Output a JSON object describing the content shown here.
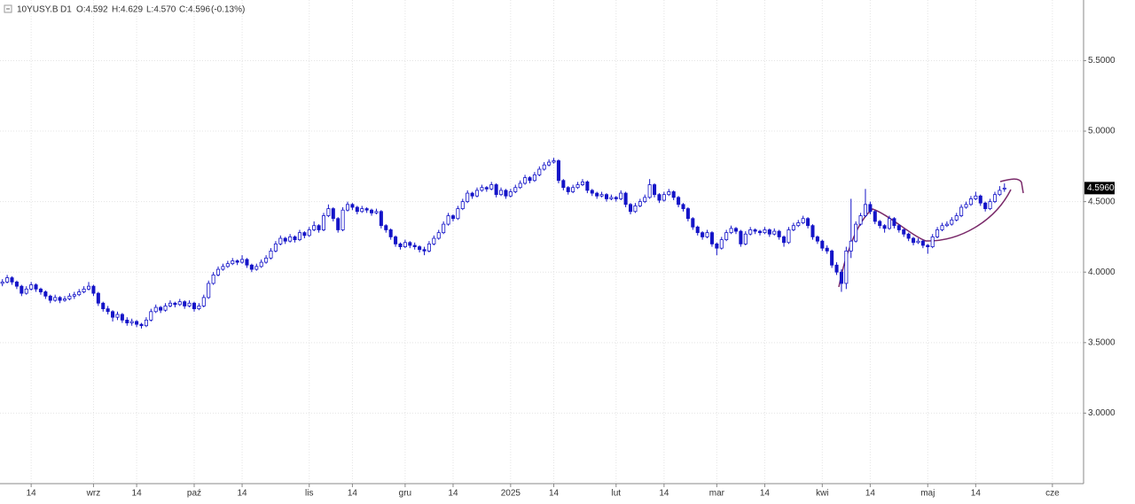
{
  "header": {
    "symbol": "10YUSY.B",
    "timeframe": "D1",
    "open": "O:4.592",
    "high": "H:4.629",
    "low": "L:4.570",
    "close": "C:4.596",
    "change": "(-0.13%)"
  },
  "chart_data": {
    "type": "candlestick",
    "up_color": "#ffffff",
    "down_color": "#1414c8",
    "outline_color": "#1414c8",
    "grid": true,
    "ylim": [
      2.5,
      5.93
    ],
    "yticks": [
      {
        "value": 3.0,
        "label": "3.0000"
      },
      {
        "value": 3.5,
        "label": "3.5000"
      },
      {
        "value": 4.0,
        "label": "4.0000"
      },
      {
        "value": 4.5,
        "label": "4.5000"
      },
      {
        "value": 5.0,
        "label": "5.0000"
      },
      {
        "value": 5.5,
        "label": "5.5000"
      }
    ],
    "xlim": [
      -0.5,
      225.5
    ],
    "xticks": [
      {
        "value": 6,
        "label": "14"
      },
      {
        "value": 19,
        "label": "wrz"
      },
      {
        "value": 28,
        "label": "14"
      },
      {
        "value": 40,
        "label": "paź"
      },
      {
        "value": 50,
        "label": "14"
      },
      {
        "value": 64,
        "label": "lis"
      },
      {
        "value": 73,
        "label": "14"
      },
      {
        "value": 84,
        "label": "gru"
      },
      {
        "value": 94,
        "label": "14"
      },
      {
        "value": 106,
        "label": "2025"
      },
      {
        "value": 115,
        "label": "14"
      },
      {
        "value": 128,
        "label": "lut"
      },
      {
        "value": 138,
        "label": "14"
      },
      {
        "value": 149,
        "label": "mar"
      },
      {
        "value": 159,
        "label": "14"
      },
      {
        "value": 171,
        "label": "kwi"
      },
      {
        "value": 181,
        "label": "14"
      },
      {
        "value": 193,
        "label": "maj"
      },
      {
        "value": 203,
        "label": "14"
      },
      {
        "value": 219,
        "label": "cze"
      }
    ],
    "last_price": {
      "value": 4.596,
      "label": "4.5960"
    },
    "ohlc": [
      [
        3.92,
        3.95,
        3.9,
        3.93
      ],
      [
        3.93,
        3.98,
        3.92,
        3.96
      ],
      [
        3.96,
        3.97,
        3.91,
        3.93
      ],
      [
        3.93,
        3.94,
        3.88,
        3.9
      ],
      [
        3.9,
        3.91,
        3.83,
        3.85
      ],
      [
        3.85,
        3.9,
        3.84,
        3.88
      ],
      [
        3.88,
        3.93,
        3.87,
        3.91
      ],
      [
        3.91,
        3.92,
        3.86,
        3.88
      ],
      [
        3.88,
        3.89,
        3.84,
        3.86
      ],
      [
        3.86,
        3.87,
        3.81,
        3.83
      ],
      [
        3.83,
        3.84,
        3.78,
        3.8
      ],
      [
        3.8,
        3.84,
        3.79,
        3.82
      ],
      [
        3.82,
        3.83,
        3.78,
        3.8
      ],
      [
        3.8,
        3.83,
        3.79,
        3.81
      ],
      [
        3.81,
        3.85,
        3.8,
        3.83
      ],
      [
        3.83,
        3.86,
        3.81,
        3.84
      ],
      [
        3.84,
        3.88,
        3.83,
        3.86
      ],
      [
        3.86,
        3.9,
        3.85,
        3.88
      ],
      [
        3.88,
        3.93,
        3.87,
        3.9
      ],
      [
        3.9,
        3.91,
        3.83,
        3.85
      ],
      [
        3.85,
        3.86,
        3.76,
        3.78
      ],
      [
        3.78,
        3.79,
        3.72,
        3.74
      ],
      [
        3.74,
        3.76,
        3.7,
        3.72
      ],
      [
        3.72,
        3.73,
        3.65,
        3.68
      ],
      [
        3.68,
        3.72,
        3.66,
        3.7
      ],
      [
        3.7,
        3.71,
        3.64,
        3.66
      ],
      [
        3.66,
        3.68,
        3.62,
        3.64
      ],
      [
        3.64,
        3.67,
        3.62,
        3.65
      ],
      [
        3.65,
        3.66,
        3.61,
        3.63
      ],
      [
        3.63,
        3.64,
        3.6,
        3.62
      ],
      [
        3.62,
        3.68,
        3.61,
        3.66
      ],
      [
        3.66,
        3.74,
        3.65,
        3.72
      ],
      [
        3.72,
        3.77,
        3.71,
        3.75
      ],
      [
        3.75,
        3.76,
        3.71,
        3.73
      ],
      [
        3.73,
        3.78,
        3.72,
        3.76
      ],
      [
        3.76,
        3.8,
        3.75,
        3.78
      ],
      [
        3.78,
        3.79,
        3.75,
        3.77
      ],
      [
        3.77,
        3.81,
        3.76,
        3.79
      ],
      [
        3.79,
        3.8,
        3.74,
        3.76
      ],
      [
        3.76,
        3.8,
        3.75,
        3.78
      ],
      [
        3.78,
        3.79,
        3.72,
        3.74
      ],
      [
        3.74,
        3.78,
        3.73,
        3.76
      ],
      [
        3.76,
        3.84,
        3.75,
        3.82
      ],
      [
        3.82,
        3.94,
        3.81,
        3.92
      ],
      [
        3.92,
        4.0,
        3.91,
        3.98
      ],
      [
        3.98,
        4.04,
        3.97,
        4.02
      ],
      [
        4.02,
        4.06,
        4.01,
        4.04
      ],
      [
        4.04,
        4.08,
        4.03,
        4.06
      ],
      [
        4.06,
        4.1,
        4.05,
        4.08
      ],
      [
        4.08,
        4.09,
        4.05,
        4.07
      ],
      [
        4.07,
        4.12,
        4.06,
        4.09
      ],
      [
        4.09,
        4.1,
        4.03,
        4.05
      ],
      [
        4.05,
        4.06,
        4.0,
        4.02
      ],
      [
        4.02,
        4.06,
        4.01,
        4.04
      ],
      [
        4.04,
        4.09,
        4.03,
        4.07
      ],
      [
        4.07,
        4.12,
        4.06,
        4.1
      ],
      [
        4.1,
        4.17,
        4.09,
        4.15
      ],
      [
        4.15,
        4.22,
        4.14,
        4.2
      ],
      [
        4.2,
        4.26,
        4.19,
        4.24
      ],
      [
        4.24,
        4.25,
        4.2,
        4.22
      ],
      [
        4.22,
        4.27,
        4.21,
        4.25
      ],
      [
        4.25,
        4.26,
        4.21,
        4.23
      ],
      [
        4.23,
        4.3,
        4.22,
        4.28
      ],
      [
        4.28,
        4.29,
        4.24,
        4.26
      ],
      [
        4.26,
        4.32,
        4.25,
        4.3
      ],
      [
        4.3,
        4.36,
        4.29,
        4.33
      ],
      [
        4.33,
        4.34,
        4.28,
        4.3
      ],
      [
        4.3,
        4.42,
        4.29,
        4.4
      ],
      [
        4.4,
        4.48,
        4.39,
        4.45
      ],
      [
        4.45,
        4.46,
        4.36,
        4.38
      ],
      [
        4.38,
        4.39,
        4.28,
        4.3
      ],
      [
        4.3,
        4.46,
        4.29,
        4.44
      ],
      [
        4.44,
        4.5,
        4.43,
        4.48
      ],
      [
        4.48,
        4.49,
        4.44,
        4.46
      ],
      [
        4.46,
        4.47,
        4.41,
        4.43
      ],
      [
        4.43,
        4.47,
        4.42,
        4.45
      ],
      [
        4.45,
        4.46,
        4.42,
        4.44
      ],
      [
        4.44,
        4.45,
        4.4,
        4.42
      ],
      [
        4.42,
        4.45,
        4.41,
        4.43
      ],
      [
        4.43,
        4.44,
        4.31,
        4.33
      ],
      [
        4.33,
        4.34,
        4.28,
        4.3
      ],
      [
        4.3,
        4.31,
        4.23,
        4.25
      ],
      [
        4.25,
        4.26,
        4.18,
        4.2
      ],
      [
        4.2,
        4.21,
        4.16,
        4.18
      ],
      [
        4.18,
        4.23,
        4.17,
        4.21
      ],
      [
        4.21,
        4.22,
        4.17,
        4.19
      ],
      [
        4.19,
        4.21,
        4.16,
        4.18
      ],
      [
        4.18,
        4.19,
        4.14,
        4.16
      ],
      [
        4.16,
        4.18,
        4.12,
        4.15
      ],
      [
        4.15,
        4.22,
        4.14,
        4.2
      ],
      [
        4.2,
        4.26,
        4.19,
        4.24
      ],
      [
        4.24,
        4.3,
        4.23,
        4.28
      ],
      [
        4.28,
        4.36,
        4.27,
        4.34
      ],
      [
        4.34,
        4.42,
        4.33,
        4.4
      ],
      [
        4.4,
        4.41,
        4.36,
        4.38
      ],
      [
        4.38,
        4.47,
        4.37,
        4.45
      ],
      [
        4.45,
        4.52,
        4.44,
        4.5
      ],
      [
        4.5,
        4.58,
        4.49,
        4.56
      ],
      [
        4.56,
        4.57,
        4.52,
        4.54
      ],
      [
        4.54,
        4.6,
        4.53,
        4.58
      ],
      [
        4.58,
        4.62,
        4.57,
        4.6
      ],
      [
        4.6,
        4.61,
        4.57,
        4.59
      ],
      [
        4.59,
        4.64,
        4.58,
        4.62
      ],
      [
        4.62,
        4.63,
        4.53,
        4.55
      ],
      [
        4.55,
        4.6,
        4.54,
        4.58
      ],
      [
        4.58,
        4.59,
        4.52,
        4.54
      ],
      [
        4.54,
        4.59,
        4.53,
        4.57
      ],
      [
        4.57,
        4.62,
        4.56,
        4.6
      ],
      [
        4.6,
        4.65,
        4.59,
        4.63
      ],
      [
        4.63,
        4.69,
        4.62,
        4.67
      ],
      [
        4.67,
        4.68,
        4.63,
        4.65
      ],
      [
        4.65,
        4.71,
        4.64,
        4.69
      ],
      [
        4.69,
        4.75,
        4.68,
        4.73
      ],
      [
        4.73,
        4.78,
        4.72,
        4.76
      ],
      [
        4.76,
        4.8,
        4.75,
        4.78
      ],
      [
        4.78,
        4.81,
        4.77,
        4.79
      ],
      [
        4.79,
        4.8,
        4.63,
        4.65
      ],
      [
        4.65,
        4.66,
        4.58,
        4.6
      ],
      [
        4.6,
        4.61,
        4.55,
        4.57
      ],
      [
        4.57,
        4.62,
        4.56,
        4.6
      ],
      [
        4.6,
        4.64,
        4.59,
        4.62
      ],
      [
        4.62,
        4.66,
        4.61,
        4.64
      ],
      [
        4.64,
        4.65,
        4.56,
        4.58
      ],
      [
        4.58,
        4.59,
        4.54,
        4.56
      ],
      [
        4.56,
        4.57,
        4.52,
        4.54
      ],
      [
        4.54,
        4.57,
        4.53,
        4.55
      ],
      [
        4.55,
        4.56,
        4.5,
        4.52
      ],
      [
        4.52,
        4.55,
        4.51,
        4.53
      ],
      [
        4.53,
        4.54,
        4.5,
        4.52
      ],
      [
        4.52,
        4.58,
        4.51,
        4.56
      ],
      [
        4.56,
        4.57,
        4.46,
        4.48
      ],
      [
        4.48,
        4.49,
        4.41,
        4.43
      ],
      [
        4.43,
        4.49,
        4.42,
        4.47
      ],
      [
        4.47,
        4.52,
        4.46,
        4.5
      ],
      [
        4.5,
        4.55,
        4.49,
        4.53
      ],
      [
        4.53,
        4.66,
        4.52,
        4.62
      ],
      [
        4.62,
        4.63,
        4.53,
        4.55
      ],
      [
        4.55,
        4.56,
        4.49,
        4.51
      ],
      [
        4.51,
        4.57,
        4.5,
        4.55
      ],
      [
        4.55,
        4.59,
        4.54,
        4.57
      ],
      [
        4.57,
        4.58,
        4.51,
        4.53
      ],
      [
        4.53,
        4.54,
        4.46,
        4.48
      ],
      [
        4.48,
        4.49,
        4.43,
        4.45
      ],
      [
        4.45,
        4.46,
        4.36,
        4.38
      ],
      [
        4.38,
        4.39,
        4.3,
        4.32
      ],
      [
        4.32,
        4.33,
        4.26,
        4.28
      ],
      [
        4.28,
        4.29,
        4.23,
        4.25
      ],
      [
        4.25,
        4.3,
        4.24,
        4.28
      ],
      [
        4.28,
        4.29,
        4.18,
        4.2
      ],
      [
        4.2,
        4.21,
        4.12,
        4.17
      ],
      [
        4.17,
        4.25,
        4.16,
        4.23
      ],
      [
        4.23,
        4.3,
        4.22,
        4.28
      ],
      [
        4.28,
        4.33,
        4.27,
        4.31
      ],
      [
        4.31,
        4.32,
        4.27,
        4.29
      ],
      [
        4.29,
        4.3,
        4.18,
        4.2
      ],
      [
        4.2,
        4.29,
        4.19,
        4.27
      ],
      [
        4.27,
        4.32,
        4.26,
        4.3
      ],
      [
        4.3,
        4.31,
        4.27,
        4.29
      ],
      [
        4.29,
        4.3,
        4.26,
        4.28
      ],
      [
        4.28,
        4.32,
        4.27,
        4.3
      ],
      [
        4.3,
        4.31,
        4.25,
        4.27
      ],
      [
        4.27,
        4.31,
        4.26,
        4.29
      ],
      [
        4.29,
        4.3,
        4.23,
        4.25
      ],
      [
        4.25,
        4.26,
        4.18,
        4.21
      ],
      [
        4.21,
        4.32,
        4.2,
        4.3
      ],
      [
        4.3,
        4.35,
        4.29,
        4.33
      ],
      [
        4.33,
        4.37,
        4.32,
        4.35
      ],
      [
        4.35,
        4.4,
        4.34,
        4.38
      ],
      [
        4.38,
        4.39,
        4.31,
        4.33
      ],
      [
        4.33,
        4.34,
        4.23,
        4.25
      ],
      [
        4.25,
        4.26,
        4.2,
        4.22
      ],
      [
        4.22,
        4.23,
        4.15,
        4.17
      ],
      [
        4.17,
        4.19,
        4.13,
        4.15
      ],
      [
        4.15,
        4.16,
        4.03,
        4.05
      ],
      [
        4.05,
        4.07,
        3.98,
        4.0
      ],
      [
        4.0,
        4.02,
        3.86,
        3.92
      ],
      [
        3.92,
        4.18,
        3.88,
        4.15
      ],
      [
        4.15,
        4.52,
        4.1,
        4.22
      ],
      [
        4.22,
        4.36,
        4.21,
        4.34
      ],
      [
        4.34,
        4.42,
        4.33,
        4.4
      ],
      [
        4.4,
        4.59,
        4.39,
        4.48
      ],
      [
        4.48,
        4.5,
        4.41,
        4.43
      ],
      [
        4.43,
        4.44,
        4.34,
        4.36
      ],
      [
        4.36,
        4.37,
        4.31,
        4.33
      ],
      [
        4.33,
        4.34,
        4.28,
        4.31
      ],
      [
        4.31,
        4.4,
        4.3,
        4.38
      ],
      [
        4.38,
        4.39,
        4.31,
        4.33
      ],
      [
        4.33,
        4.34,
        4.28,
        4.3
      ],
      [
        4.3,
        4.31,
        4.25,
        4.27
      ],
      [
        4.27,
        4.28,
        4.22,
        4.24
      ],
      [
        4.24,
        4.25,
        4.19,
        4.21
      ],
      [
        4.21,
        4.24,
        4.2,
        4.22
      ],
      [
        4.22,
        4.23,
        4.17,
        4.19
      ],
      [
        4.19,
        4.2,
        4.13,
        4.18
      ],
      [
        4.18,
        4.27,
        4.17,
        4.25
      ],
      [
        4.25,
        4.32,
        4.24,
        4.3
      ],
      [
        4.3,
        4.35,
        4.29,
        4.33
      ],
      [
        4.33,
        4.36,
        4.32,
        4.34
      ],
      [
        4.34,
        4.39,
        4.33,
        4.37
      ],
      [
        4.37,
        4.42,
        4.36,
        4.4
      ],
      [
        4.4,
        4.48,
        4.39,
        4.46
      ],
      [
        4.46,
        4.5,
        4.45,
        4.48
      ],
      [
        4.48,
        4.54,
        4.47,
        4.52
      ],
      [
        4.52,
        4.57,
        4.51,
        4.54
      ],
      [
        4.54,
        4.55,
        4.47,
        4.49
      ],
      [
        4.49,
        4.5,
        4.43,
        4.45
      ],
      [
        4.45,
        4.52,
        4.44,
        4.5
      ],
      [
        4.5,
        4.57,
        4.49,
        4.55
      ],
      [
        4.55,
        4.61,
        4.54,
        4.58
      ],
      [
        4.592,
        4.629,
        4.57,
        4.596
      ]
    ]
  }
}
